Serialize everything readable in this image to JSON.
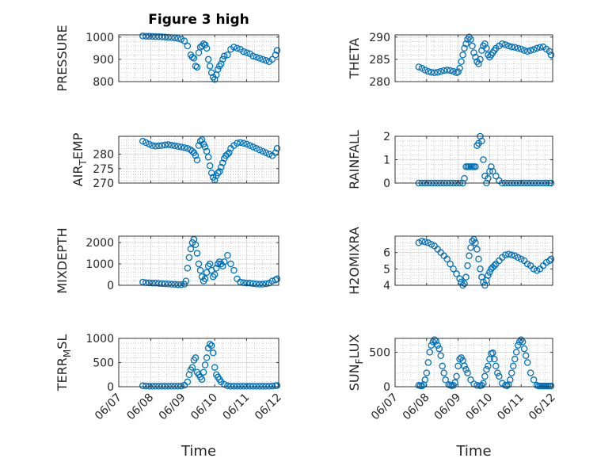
{
  "figure_title": "Figure 3 high",
  "colors": {
    "marker": "#0072BD",
    "axis": "#262626",
    "grid": "#b0b0b0"
  },
  "chart_data": [
    {
      "type": "scatter",
      "title": "Figure 3 high",
      "ylabel": "PRESSURE",
      "ylabel_main": "PRESSURE",
      "ylabel_sub": "",
      "ylabel_tail": "",
      "ylim": [
        800,
        1010
      ],
      "yticks": [
        800,
        900,
        1000
      ],
      "ytick_labels": [
        "800",
        "900",
        "1000"
      ],
      "x_tick_labels": [
        "06/07",
        "06/08",
        "06/09",
        "06/10",
        "06/11",
        "06/12"
      ],
      "xlabel": "",
      "x": [
        0.75,
        0.85,
        0.95,
        1.05,
        1.15,
        1.25,
        1.35,
        1.45,
        1.55,
        1.65,
        1.75,
        1.85,
        1.95,
        2.05,
        2.15,
        2.25,
        2.3,
        2.35,
        2.4,
        2.45,
        2.5,
        2.55,
        2.6,
        2.65,
        2.7,
        2.75,
        2.8,
        2.85,
        2.9,
        2.95,
        3.0,
        3.05,
        3.1,
        3.15,
        3.2,
        3.25,
        3.3,
        3.4,
        3.5,
        3.6,
        3.7,
        3.8,
        3.9,
        4.0,
        4.1,
        4.2,
        4.3,
        4.4,
        4.5,
        4.6,
        4.7,
        4.8,
        4.9,
        4.95
      ],
      "y": [
        1005,
        1004,
        1004,
        1003,
        1002,
        1002,
        1001,
        1000,
        999,
        998,
        996,
        994,
        990,
        983,
        960,
        920,
        910,
        905,
        870,
        865,
        930,
        955,
        960,
        970,
        965,
        950,
        900,
        870,
        840,
        820,
        810,
        830,
        855,
        870,
        880,
        900,
        915,
        920,
        945,
        955,
        950,
        945,
        935,
        930,
        925,
        915,
        910,
        905,
        900,
        895,
        890,
        900,
        920,
        940
      ]
    },
    {
      "type": "scatter",
      "ylabel": "THETA",
      "ylabel_main": "THETA",
      "ylabel_sub": "",
      "ylabel_tail": "",
      "ylim": [
        280,
        290.5
      ],
      "yticks": [
        280,
        285,
        290
      ],
      "ytick_labels": [
        "280",
        "285",
        "290"
      ],
      "x_tick_labels": [
        "06/07",
        "06/08",
        "06/09",
        "06/10",
        "06/11",
        "06/12"
      ],
      "xlabel": "",
      "x": [
        0.75,
        0.85,
        0.95,
        1.05,
        1.15,
        1.25,
        1.35,
        1.45,
        1.55,
        1.65,
        1.75,
        1.85,
        1.95,
        2.0,
        2.05,
        2.1,
        2.15,
        2.2,
        2.25,
        2.3,
        2.35,
        2.4,
        2.45,
        2.5,
        2.55,
        2.6,
        2.65,
        2.7,
        2.75,
        2.8,
        2.85,
        2.9,
        2.95,
        3.0,
        3.05,
        3.1,
        3.15,
        3.2,
        3.3,
        3.4,
        3.5,
        3.6,
        3.7,
        3.8,
        3.9,
        4.0,
        4.1,
        4.2,
        4.3,
        4.4,
        4.5,
        4.6,
        4.7,
        4.8,
        4.9,
        4.95
      ],
      "y": [
        283.3,
        283.0,
        282.6,
        282.3,
        282.1,
        282.0,
        282.1,
        282.3,
        282.5,
        282.6,
        282.5,
        282.3,
        282.0,
        282.2,
        283.0,
        284.5,
        286.0,
        287.5,
        288.5,
        289.5,
        290.0,
        289.5,
        288.0,
        286.5,
        285.5,
        284.5,
        284.0,
        285.0,
        287.0,
        288.0,
        288.5,
        287.5,
        286.0,
        285.5,
        286.0,
        286.5,
        287.0,
        287.5,
        288.0,
        288.5,
        288.3,
        288.0,
        287.8,
        287.7,
        287.5,
        287.3,
        287.0,
        286.8,
        287.0,
        287.2,
        287.5,
        287.7,
        287.8,
        287.3,
        286.8,
        286.0
      ]
    },
    {
      "type": "scatter",
      "ylabel": "AIR_TEMP",
      "ylabel_main": "AIR",
      "ylabel_sub": "T",
      "ylabel_tail": "EMP",
      "ylim": [
        270,
        286.2
      ],
      "yticks": [
        270,
        275,
        280
      ],
      "ytick_labels": [
        "270",
        "275",
        "280"
      ],
      "x_tick_labels": [
        "06/07",
        "06/08",
        "06/09",
        "06/10",
        "06/11",
        "06/12"
      ],
      "xlabel": "",
      "x": [
        0.75,
        0.85,
        0.95,
        1.05,
        1.15,
        1.25,
        1.35,
        1.45,
        1.55,
        1.65,
        1.75,
        1.85,
        1.95,
        2.05,
        2.15,
        2.25,
        2.3,
        2.35,
        2.4,
        2.45,
        2.5,
        2.55,
        2.6,
        2.65,
        2.7,
        2.75,
        2.8,
        2.85,
        2.9,
        2.95,
        3.0,
        3.05,
        3.1,
        3.15,
        3.2,
        3.25,
        3.3,
        3.35,
        3.4,
        3.45,
        3.5,
        3.6,
        3.7,
        3.8,
        3.9,
        4.0,
        4.1,
        4.2,
        4.3,
        4.4,
        4.5,
        4.6,
        4.7,
        4.8,
        4.9,
        4.95
      ],
      "y": [
        284.5,
        284.0,
        283.5,
        283.0,
        282.8,
        282.9,
        283.0,
        283.2,
        283.3,
        283.1,
        282.9,
        282.7,
        282.5,
        282.3,
        282.0,
        281.5,
        281.0,
        280.5,
        279.5,
        278.0,
        283.0,
        284.5,
        285.0,
        283.5,
        282.5,
        281.0,
        279.0,
        276.0,
        273.5,
        272.0,
        271.0,
        272.5,
        273.5,
        274.0,
        275.5,
        277.0,
        278.5,
        279.5,
        280.0,
        280.5,
        282.0,
        283.0,
        283.8,
        284.0,
        283.8,
        283.5,
        283.0,
        282.5,
        282.0,
        281.5,
        281.0,
        280.5,
        280.0,
        279.5,
        280.5,
        282.0
      ]
    },
    {
      "type": "scatter",
      "ylabel": "RAINFALL",
      "ylabel_main": "RAINFALL",
      "ylabel_sub": "",
      "ylabel_tail": "",
      "ylim": [
        0,
        2
      ],
      "yticks": [
        0,
        1,
        2
      ],
      "ytick_labels": [
        "0",
        "1",
        "2"
      ],
      "x_tick_labels": [
        "06/07",
        "06/08",
        "06/09",
        "06/10",
        "06/11",
        "06/12"
      ],
      "xlabel": "",
      "x": [
        0.75,
        0.85,
        0.95,
        1.05,
        1.15,
        1.25,
        1.35,
        1.45,
        1.55,
        1.65,
        1.75,
        1.85,
        1.95,
        2.05,
        2.15,
        2.2,
        2.25,
        2.3,
        2.35,
        2.4,
        2.45,
        2.5,
        2.55,
        2.6,
        2.65,
        2.7,
        2.75,
        2.8,
        2.85,
        2.9,
        2.95,
        3.0,
        3.05,
        3.1,
        3.2,
        3.3,
        3.4,
        3.5,
        3.6,
        3.7,
        3.8,
        3.9,
        4.0,
        4.1,
        4.2,
        4.3,
        4.4,
        4.5,
        4.6,
        4.7,
        4.8,
        4.9,
        4.95
      ],
      "y": [
        0,
        0,
        0,
        0,
        0,
        0,
        0,
        0,
        0,
        0,
        0,
        0,
        0,
        0,
        0,
        0.2,
        0.7,
        0.7,
        0.7,
        0.7,
        0.7,
        0.7,
        0.7,
        1.6,
        1.7,
        2.0,
        1.8,
        1.0,
        0.3,
        0,
        0.2,
        0.5,
        0.7,
        0.5,
        0.3,
        0.1,
        0,
        0,
        0,
        0,
        0,
        0,
        0,
        0,
        0,
        0,
        0,
        0,
        0,
        0,
        0,
        0,
        0
      ]
    },
    {
      "type": "scatter",
      "ylabel": "MIXDEPTH",
      "ylabel_main": "MIXDEPTH",
      "ylabel_sub": "",
      "ylabel_tail": "",
      "ylim": [
        0,
        2300
      ],
      "yticks": [
        0,
        1000,
        2000
      ],
      "ytick_labels": [
        "0",
        "1000",
        "2000"
      ],
      "x_tick_labels": [
        "06/07",
        "06/08",
        "06/09",
        "06/10",
        "06/11",
        "06/12"
      ],
      "xlabel": "",
      "x": [
        0.75,
        0.85,
        0.95,
        1.05,
        1.15,
        1.25,
        1.35,
        1.45,
        1.55,
        1.65,
        1.75,
        1.85,
        1.95,
        2.05,
        2.1,
        2.15,
        2.2,
        2.25,
        2.3,
        2.35,
        2.4,
        2.45,
        2.5,
        2.55,
        2.6,
        2.65,
        2.7,
        2.75,
        2.8,
        2.85,
        2.9,
        2.95,
        3.0,
        3.05,
        3.1,
        3.15,
        3.2,
        3.25,
        3.3,
        3.4,
        3.5,
        3.6,
        3.7,
        3.8,
        3.9,
        4.0,
        4.1,
        4.2,
        4.3,
        4.4,
        4.5,
        4.6,
        4.7,
        4.8,
        4.9,
        4.95
      ],
      "y": [
        150,
        120,
        110,
        100,
        100,
        90,
        80,
        70,
        60,
        50,
        40,
        30,
        30,
        50,
        200,
        800,
        1300,
        1700,
        2000,
        2150,
        1900,
        1500,
        1000,
        700,
        400,
        200,
        300,
        600,
        900,
        1000,
        700,
        400,
        500,
        800,
        1000,
        1100,
        1000,
        900,
        1100,
        1400,
        1000,
        700,
        300,
        150,
        120,
        100,
        100,
        80,
        60,
        50,
        50,
        70,
        100,
        200,
        250,
        300
      ]
    },
    {
      "type": "scatter",
      "ylabel": "H2OMIXRA",
      "ylabel_main": "H2OMIXRA",
      "ylabel_sub": "",
      "ylabel_tail": "",
      "ylim": [
        4,
        7
      ],
      "yticks": [
        4,
        5,
        6
      ],
      "ytick_labels": [
        "4",
        "5",
        "6"
      ],
      "x_tick_labels": [
        "06/07",
        "06/08",
        "06/09",
        "06/10",
        "06/11",
        "06/12"
      ],
      "xlabel": "",
      "x": [
        0.75,
        0.85,
        0.95,
        1.05,
        1.15,
        1.25,
        1.35,
        1.45,
        1.55,
        1.65,
        1.75,
        1.85,
        1.95,
        2.05,
        2.1,
        2.15,
        2.2,
        2.25,
        2.3,
        2.35,
        2.4,
        2.45,
        2.5,
        2.55,
        2.6,
        2.65,
        2.7,
        2.75,
        2.8,
        2.85,
        2.9,
        2.95,
        3.0,
        3.05,
        3.1,
        3.15,
        3.2,
        3.3,
        3.4,
        3.5,
        3.6,
        3.7,
        3.8,
        3.9,
        4.0,
        4.1,
        4.2,
        4.3,
        4.4,
        4.5,
        4.6,
        4.7,
        4.8,
        4.9,
        4.95
      ],
      "y": [
        6.6,
        6.7,
        6.65,
        6.6,
        6.5,
        6.4,
        6.2,
        6.0,
        5.8,
        5.6,
        5.3,
        5.0,
        4.7,
        4.4,
        4.2,
        4.0,
        4.1,
        4.5,
        5.2,
        5.8,
        6.3,
        6.7,
        6.8,
        6.6,
        6.2,
        5.6,
        5.0,
        4.5,
        4.2,
        4.0,
        4.3,
        4.6,
        4.8,
        5.0,
        5.1,
        5.2,
        5.3,
        5.5,
        5.7,
        5.85,
        5.9,
        5.85,
        5.8,
        5.7,
        5.6,
        5.5,
        5.3,
        5.2,
        5.0,
        4.9,
        5.0,
        5.2,
        5.4,
        5.5,
        5.6
      ]
    },
    {
      "type": "scatter",
      "ylabel": "TERR_MSL",
      "ylabel_main": "TERR",
      "ylabel_sub": "M",
      "ylabel_tail": "SL",
      "ylim": [
        0,
        1000
      ],
      "yticks": [
        0,
        500,
        1000
      ],
      "ytick_labels": [
        "0",
        "500",
        "1000"
      ],
      "x_tick_labels": [
        "06/07",
        "06/08",
        "06/09",
        "06/10",
        "06/11",
        "06/12"
      ],
      "xlabel": "Time",
      "x": [
        0.75,
        0.85,
        0.95,
        1.05,
        1.15,
        1.25,
        1.35,
        1.45,
        1.55,
        1.65,
        1.75,
        1.85,
        1.95,
        2.05,
        2.15,
        2.2,
        2.25,
        2.3,
        2.35,
        2.4,
        2.45,
        2.5,
        2.55,
        2.6,
        2.65,
        2.7,
        2.75,
        2.8,
        2.85,
        2.9,
        2.95,
        3.0,
        3.05,
        3.1,
        3.15,
        3.2,
        3.3,
        3.4,
        3.5,
        3.6,
        3.7,
        3.8,
        3.9,
        4.0,
        4.1,
        4.2,
        4.3,
        4.4,
        4.5,
        4.6,
        4.7,
        4.8,
        4.9,
        4.95
      ],
      "y": [
        20,
        15,
        10,
        10,
        10,
        10,
        10,
        10,
        10,
        10,
        10,
        10,
        15,
        30,
        100,
        250,
        350,
        400,
        550,
        600,
        300,
        250,
        200,
        150,
        300,
        450,
        600,
        800,
        880,
        850,
        700,
        400,
        250,
        200,
        150,
        100,
        50,
        20,
        10,
        10,
        10,
        10,
        10,
        10,
        10,
        10,
        10,
        10,
        10,
        10,
        10,
        15,
        20,
        25
      ]
    },
    {
      "type": "scatter",
      "ylabel": "SUN_FLUX",
      "ylabel_main": "SUN",
      "ylabel_sub": "F",
      "ylabel_tail": "LUX",
      "ylim": [
        0,
        700
      ],
      "yticks": [
        0,
        500
      ],
      "ytick_labels": [
        "0",
        "500"
      ],
      "x_tick_labels": [
        "06/07",
        "06/08",
        "06/09",
        "06/10",
        "06/11",
        "06/12"
      ],
      "xlabel": "Time",
      "x": [
        0.75,
        0.8,
        0.85,
        0.9,
        0.95,
        1.0,
        1.05,
        1.1,
        1.15,
        1.2,
        1.25,
        1.3,
        1.35,
        1.4,
        1.45,
        1.5,
        1.55,
        1.6,
        1.7,
        1.75,
        1.8,
        1.85,
        1.9,
        1.95,
        2.0,
        2.05,
        2.1,
        2.15,
        2.2,
        2.25,
        2.3,
        2.4,
        2.5,
        2.6,
        2.7,
        2.75,
        2.8,
        2.85,
        2.9,
        2.95,
        3.0,
        3.05,
        3.1,
        3.15,
        3.2,
        3.25,
        3.3,
        3.4,
        3.5,
        3.55,
        3.6,
        3.65,
        3.7,
        3.75,
        3.8,
        3.85,
        3.9,
        3.95,
        4.0,
        4.05,
        4.1,
        4.15,
        4.2,
        4.3,
        4.4,
        4.5,
        4.55,
        4.6,
        4.65,
        4.7,
        4.75,
        4.8,
        4.85,
        4.9,
        4.95
      ],
      "y": [
        20,
        15,
        10,
        30,
        100,
        200,
        350,
        500,
        600,
        650,
        680,
        660,
        600,
        550,
        450,
        300,
        200,
        100,
        30,
        20,
        15,
        20,
        60,
        150,
        300,
        400,
        420,
        380,
        300,
        250,
        200,
        100,
        40,
        20,
        15,
        20,
        50,
        150,
        250,
        300,
        400,
        480,
        490,
        400,
        300,
        200,
        150,
        50,
        20,
        15,
        30,
        100,
        200,
        300,
        400,
        500,
        600,
        650,
        680,
        650,
        550,
        450,
        350,
        200,
        100,
        20,
        10,
        10,
        10,
        10,
        10,
        10,
        10,
        10,
        10
      ]
    }
  ]
}
